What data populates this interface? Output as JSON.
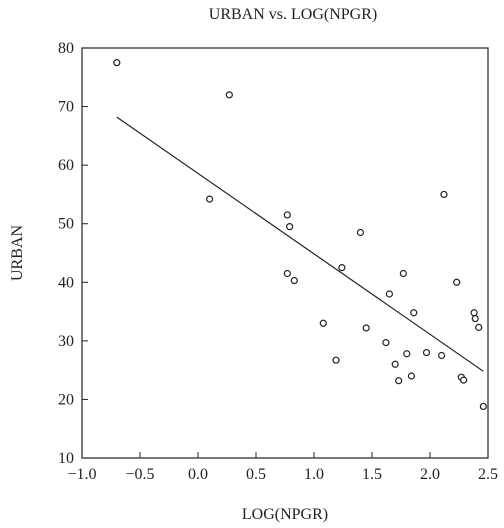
{
  "chart_data": {
    "type": "scatter",
    "title": "URBAN vs. LOG(NPGR)",
    "xlabel": "LOG(NPGR)",
    "ylabel": "URBAN",
    "xlim": [
      -1.0,
      2.5
    ],
    "ylim": [
      10,
      80
    ],
    "xticks": [
      -1.0,
      -0.5,
      0.0,
      0.5,
      1.0,
      1.5,
      2.0,
      2.5
    ],
    "xtick_labels": [
      "−1.0",
      "−0.5",
      "0.0",
      "0.5",
      "1.0",
      "1.5",
      "2.0",
      "2.5"
    ],
    "yticks": [
      10,
      20,
      30,
      40,
      50,
      60,
      70,
      80
    ],
    "ytick_labels": [
      "10",
      "20",
      "30",
      "40",
      "50",
      "60",
      "70",
      "80"
    ],
    "grid": false,
    "marker": "hollow-circle",
    "color": "#222222",
    "points": [
      {
        "x": -0.7,
        "y": 77.5
      },
      {
        "x": 0.1,
        "y": 54.2
      },
      {
        "x": 0.27,
        "y": 72.0
      },
      {
        "x": 0.77,
        "y": 51.5
      },
      {
        "x": 0.79,
        "y": 49.5
      },
      {
        "x": 0.77,
        "y": 41.5
      },
      {
        "x": 0.83,
        "y": 40.3
      },
      {
        "x": 1.08,
        "y": 33.0
      },
      {
        "x": 1.19,
        "y": 26.7
      },
      {
        "x": 1.24,
        "y": 42.5
      },
      {
        "x": 1.4,
        "y": 48.5
      },
      {
        "x": 1.45,
        "y": 32.2
      },
      {
        "x": 1.62,
        "y": 29.7
      },
      {
        "x": 1.65,
        "y": 38.0
      },
      {
        "x": 1.7,
        "y": 26.0
      },
      {
        "x": 1.73,
        "y": 23.2
      },
      {
        "x": 1.77,
        "y": 41.5
      },
      {
        "x": 1.8,
        "y": 27.8
      },
      {
        "x": 1.84,
        "y": 24.0
      },
      {
        "x": 1.86,
        "y": 34.8
      },
      {
        "x": 1.97,
        "y": 28.0
      },
      {
        "x": 2.1,
        "y": 27.5
      },
      {
        "x": 2.12,
        "y": 55.0
      },
      {
        "x": 2.23,
        "y": 40.0
      },
      {
        "x": 2.27,
        "y": 23.8
      },
      {
        "x": 2.29,
        "y": 23.3
      },
      {
        "x": 2.38,
        "y": 34.8
      },
      {
        "x": 2.39,
        "y": 33.8
      },
      {
        "x": 2.42,
        "y": 32.3
      },
      {
        "x": 2.46,
        "y": 18.8
      }
    ],
    "trendline": {
      "x1": -0.7,
      "y1": 68.2,
      "x2": 2.46,
      "y2": 24.8
    }
  }
}
